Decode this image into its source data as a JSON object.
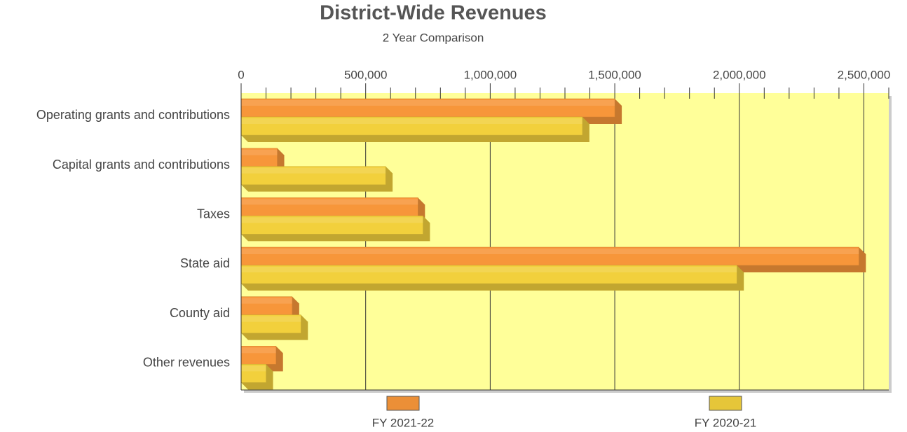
{
  "chart_data": {
    "type": "hbar3d",
    "title": "District-Wide Revenues",
    "subtitle": "2 Year Comparison",
    "categories": [
      "Operating grants and contributions",
      "Capital grants and contributions",
      "Taxes",
      "State aid",
      "County aid",
      "Other revenues"
    ],
    "series": [
      {
        "name": "FY 2021-22",
        "color": "#f7963a",
        "values": [
          1500000,
          145000,
          710000,
          2480000,
          205000,
          140000
        ]
      },
      {
        "name": "FY 2020-21",
        "color": "#f2d03c",
        "values": [
          1370000,
          580000,
          730000,
          1990000,
          240000,
          100000
        ]
      }
    ],
    "xlim": [
      0,
      2600000
    ],
    "xticks": [
      0,
      {
        "value": 500000,
        "label": "500,000"
      },
      {
        "value": 1000000,
        "label": "1,000,000"
      },
      {
        "value": 1500000,
        "label": "1,500,000"
      },
      {
        "value": 2000000,
        "label": "2,000,000"
      },
      {
        "value": 2500000,
        "label": "2,500,000"
      }
    ],
    "xminorticks": [
      100000,
      200000,
      300000,
      400000,
      600000,
      700000,
      800000,
      900000,
      1100000,
      1200000,
      1300000,
      1400000,
      1600000,
      1700000,
      1800000,
      1900000,
      2100000,
      2200000,
      2300000,
      2400000,
      2600000
    ],
    "grid": true,
    "plot_background": "#ffff99"
  }
}
